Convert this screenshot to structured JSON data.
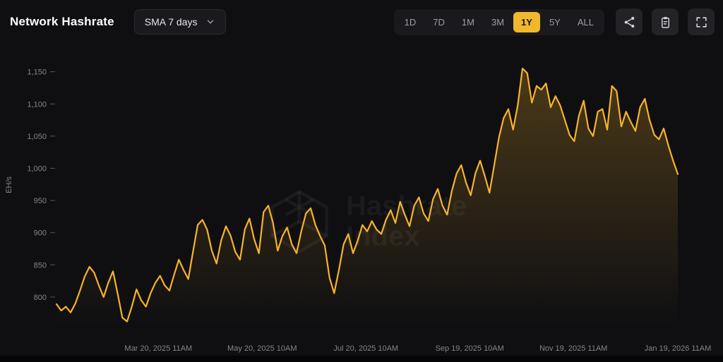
{
  "header": {
    "title": "Network Hashrate",
    "sma_dropdown": {
      "value": "SMA 7 days"
    },
    "ranges": {
      "options": [
        "1D",
        "7D",
        "1M",
        "3M",
        "1Y",
        "5Y",
        "ALL"
      ],
      "selected": "1Y"
    },
    "toolbar_icons": [
      "share-icon",
      "clipboard-icon",
      "fullscreen-icon"
    ]
  },
  "colors": {
    "accent": "#f2b82d",
    "line": "#f7b32b",
    "page_bg": "#0f0f12",
    "panel_bg": "#1a1a1e",
    "text_muted": "#85858a"
  },
  "watermark": {
    "line1": "Hashrate",
    "line2": "Index"
  },
  "chart_data": {
    "type": "area",
    "title": "Network Hashrate",
    "subtitle": "SMA 7 days",
    "xlabel": "",
    "ylabel": "EH/s",
    "unit": "EH/s",
    "ylim": [
      755,
      1165
    ],
    "yticks": [
      800,
      850,
      900,
      950,
      1000,
      1050,
      1100,
      1150
    ],
    "xticks": [
      {
        "label": "Mar 20, 2025 11AM",
        "pos": 0.164
      },
      {
        "label": "May 20, 2025 10AM",
        "pos": 0.331
      },
      {
        "label": "Jul 20, 2025 10AM",
        "pos": 0.498
      },
      {
        "label": "Sep 19, 2025 10AM",
        "pos": 0.665
      },
      {
        "label": "Nov 19, 2025 11AM",
        "pos": 0.832
      },
      {
        "label": "Jan 19, 2026 11AM",
        "pos": 1.0
      }
    ],
    "grid": false,
    "legend": false,
    "series": [
      {
        "name": "Network Hashrate (SMA 7 days)",
        "values": [
          789,
          779,
          785,
          776,
          790,
          810,
          832,
          847,
          838,
          818,
          800,
          822,
          840,
          805,
          768,
          762,
          785,
          812,
          795,
          785,
          806,
          822,
          833,
          818,
          810,
          835,
          858,
          842,
          828,
          870,
          912,
          920,
          905,
          872,
          852,
          888,
          910,
          895,
          870,
          858,
          905,
          922,
          890,
          868,
          932,
          942,
          915,
          872,
          895,
          908,
          882,
          868,
          902,
          930,
          938,
          912,
          895,
          880,
          830,
          806,
          842,
          882,
          898,
          868,
          888,
          912,
          902,
          918,
          905,
          898,
          920,
          935,
          915,
          948,
          928,
          910,
          942,
          955,
          930,
          918,
          952,
          968,
          942,
          928,
          965,
          992,
          1005,
          978,
          958,
          992,
          1012,
          988,
          962,
          1005,
          1048,
          1078,
          1092,
          1060,
          1098,
          1155,
          1148,
          1102,
          1128,
          1122,
          1132,
          1095,
          1112,
          1098,
          1075,
          1052,
          1042,
          1082,
          1105,
          1062,
          1050,
          1088,
          1092,
          1060,
          1128,
          1120,
          1065,
          1088,
          1072,
          1058,
          1095,
          1108,
          1075,
          1052,
          1045,
          1062,
          1035,
          1012,
          991
        ]
      }
    ]
  }
}
